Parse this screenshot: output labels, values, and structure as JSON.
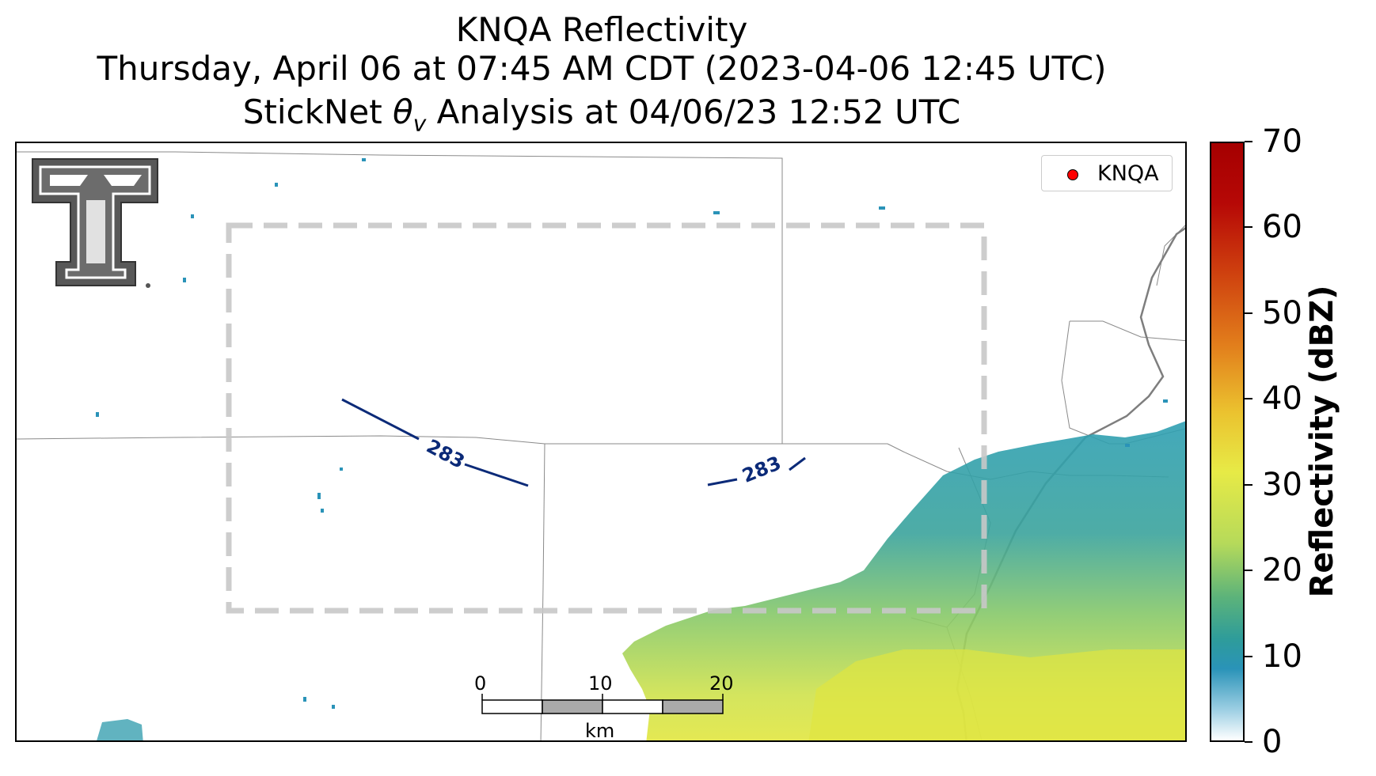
{
  "title": {
    "line1": "KNQA Reflectivity",
    "line2": "Thursday, April 06 at 07:45 AM CDT (2023-04-06 12:45 UTC)",
    "line3_prefix": "StickNet ",
    "line3_symbol": "θ",
    "line3_subscript": "v",
    "line3_suffix": " Analysis at 04/06/23 12:52 UTC"
  },
  "legend": {
    "marker_color": "#ff0000",
    "label": "KNQA"
  },
  "contour_labels": [
    "283",
    "283"
  ],
  "contour_color": "#0b2a78",
  "analysis_box_color": "#c8c8c8",
  "colorbar": {
    "label": "Reflectivity (dBZ)",
    "ticks": [
      "0",
      "10",
      "20",
      "30",
      "40",
      "50",
      "60",
      "70"
    ],
    "range": [
      0,
      70
    ],
    "colors": [
      "#ffffff",
      "#2a93b8",
      "#5cb37a",
      "#e7ea46",
      "#ebc22f",
      "#e27f1c",
      "#cf420f",
      "#a50000"
    ]
  },
  "scalebar": {
    "ticks": [
      "0",
      "10",
      "20"
    ],
    "unit": "km"
  },
  "logo": {
    "name": "Texas Tech Double T"
  }
}
